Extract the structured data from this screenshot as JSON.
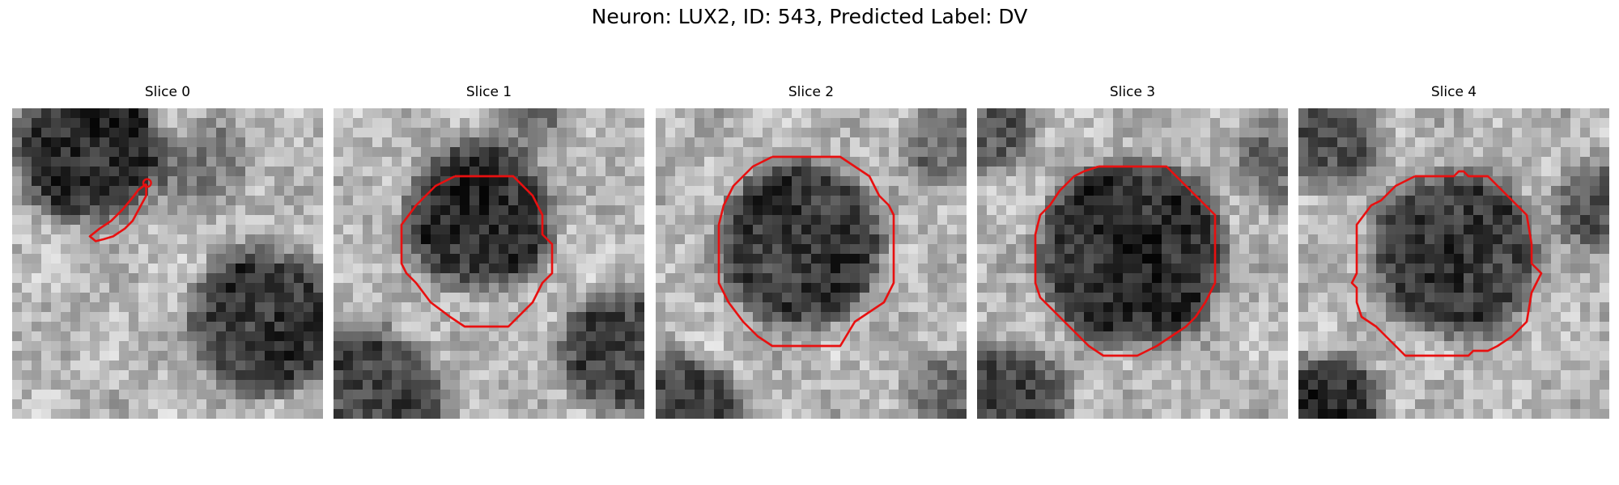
{
  "figure": {
    "title": "Neuron: LUX2, ID: 543, Predicted Label: DV"
  },
  "panels": [
    {
      "title": "Slice 0"
    },
    {
      "title": "Slice 1"
    },
    {
      "title": "Slice 2"
    },
    {
      "title": "Slice 3"
    },
    {
      "title": "Slice 4"
    }
  ],
  "colors": {
    "contour": "#e81010",
    "background": "#ffffff"
  }
}
